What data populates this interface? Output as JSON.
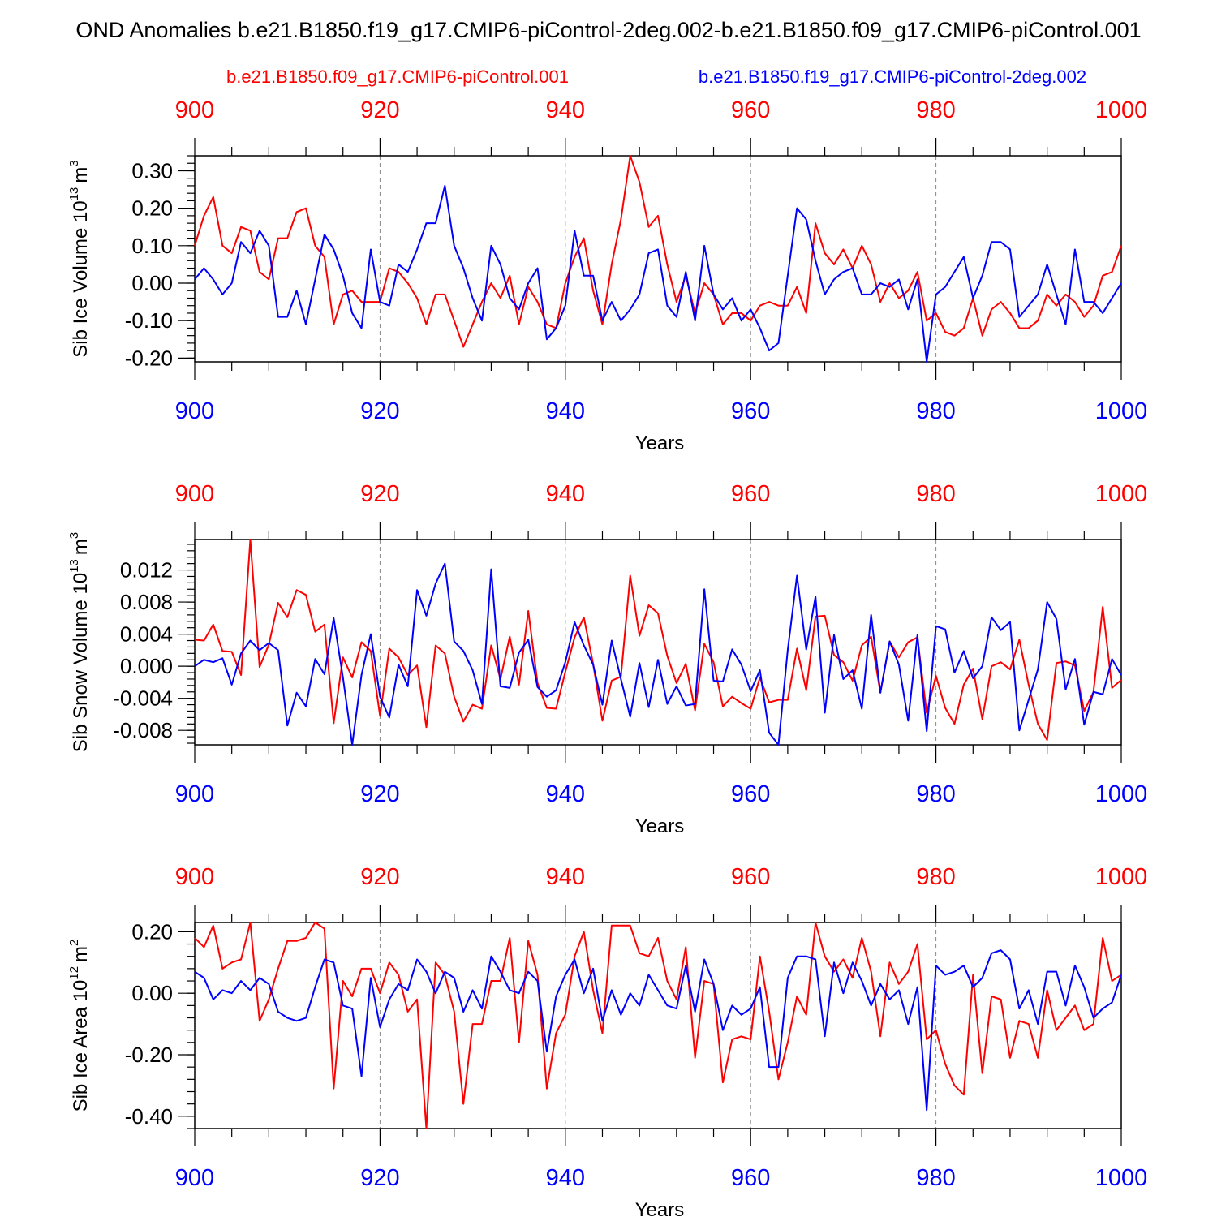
{
  "title": "OND Anomalies b.e21.B1850.f19_g17.CMIP6-piControl-2deg.002-b.e21.B1850.f09_g17.CMIP6-piControl.001",
  "legend": {
    "red_label": "b.e21.B1850.f09_g17.CMIP6-piControl.001",
    "blue_label": "b.e21.B1850.f19_g17.CMIP6-piControl-2deg.002"
  },
  "colors": {
    "red": "#ff0000",
    "blue": "#0000ff",
    "axis": "#000000",
    "grid": "#888888"
  },
  "chart_data": [
    {
      "type": "line",
      "ylabel": "Sib Ice Volume 10^13 m^3",
      "ylabel_main": "Sib Ice Volume 10",
      "ylabel_exp": "13",
      "ylabel_unit": "m",
      "ylabel_unit_exp": "3",
      "xlabel": "Years",
      "xlim": [
        900,
        1000
      ],
      "ylim": [
        -0.21,
        0.34
      ],
      "yticks": [
        -0.2,
        -0.1,
        0.0,
        0.1,
        0.2,
        0.3
      ],
      "yticklabels": [
        "-0.20",
        "-0.10",
        "0.00",
        "0.10",
        "0.20",
        "0.30"
      ],
      "yminor_step": 0.02,
      "top_xticklabels": [
        "900",
        "920",
        "940",
        "960",
        "980",
        "1000"
      ],
      "bottom_xticklabels": [
        "900",
        "920",
        "940",
        "960",
        "980",
        "1000"
      ],
      "series": [
        {
          "name": "b.e21.B1850.f09_g17.CMIP6-piControl.001",
          "color": "red",
          "x_start": 900,
          "values": [
            0.1,
            0.18,
            0.23,
            0.1,
            0.08,
            0.15,
            0.14,
            0.03,
            0.01,
            0.12,
            0.12,
            0.19,
            0.2,
            0.1,
            0.07,
            -0.11,
            -0.03,
            -0.02,
            -0.05,
            -0.05,
            -0.05,
            0.04,
            0.03,
            0.0,
            -0.04,
            -0.11,
            -0.03,
            -0.03,
            -0.1,
            -0.17,
            -0.11,
            -0.05,
            0.0,
            -0.04,
            0.02,
            -0.11,
            -0.01,
            -0.05,
            -0.11,
            -0.12,
            0.0,
            0.07,
            0.12,
            -0.02,
            -0.11,
            0.05,
            0.17,
            0.34,
            0.27,
            0.15,
            0.18,
            0.05,
            -0.05,
            0.02,
            -0.08,
            0.0,
            -0.03,
            -0.11,
            -0.08,
            -0.08,
            -0.1,
            -0.06,
            -0.05,
            -0.06,
            -0.06,
            -0.01,
            -0.08,
            0.16,
            0.08,
            0.05,
            0.09,
            0.04,
            0.1,
            0.05,
            -0.05,
            0.0,
            -0.04,
            -0.02,
            0.03,
            -0.1,
            -0.08,
            -0.13,
            -0.14,
            -0.12,
            -0.04,
            -0.14,
            -0.07,
            -0.05,
            -0.08,
            -0.12,
            -0.12,
            -0.1,
            -0.03,
            -0.06,
            -0.03,
            -0.05,
            -0.09,
            -0.06,
            0.02,
            0.03,
            0.1
          ]
        },
        {
          "name": "b.e21.B1850.f19_g17.CMIP6-piControl-2deg.002",
          "color": "blue",
          "x_start": 900,
          "values": [
            0.01,
            0.04,
            0.01,
            -0.03,
            0.0,
            0.11,
            0.08,
            0.14,
            0.1,
            -0.09,
            -0.09,
            -0.02,
            -0.11,
            0.01,
            0.13,
            0.09,
            0.02,
            -0.08,
            -0.12,
            0.09,
            -0.05,
            -0.06,
            0.05,
            0.03,
            0.09,
            0.16,
            0.16,
            0.26,
            0.1,
            0.04,
            -0.04,
            -0.1,
            0.1,
            0.05,
            -0.04,
            -0.07,
            0.0,
            0.04,
            -0.15,
            -0.12,
            -0.06,
            0.14,
            0.02,
            0.02,
            -0.1,
            -0.05,
            -0.1,
            -0.07,
            -0.03,
            0.08,
            0.09,
            -0.06,
            -0.09,
            0.03,
            -0.1,
            0.1,
            -0.03,
            -0.07,
            -0.04,
            -0.1,
            -0.07,
            -0.12,
            -0.18,
            -0.16,
            0.02,
            0.2,
            0.17,
            0.06,
            -0.03,
            0.01,
            0.03,
            0.04,
            -0.03,
            -0.03,
            0.0,
            -0.01,
            0.01,
            -0.07,
            0.01,
            -0.21,
            -0.03,
            -0.01,
            0.03,
            0.07,
            -0.04,
            0.02,
            0.11,
            0.11,
            0.09,
            -0.09,
            -0.06,
            -0.03,
            0.05,
            -0.03,
            -0.11,
            0.09,
            -0.05,
            -0.05,
            -0.08,
            -0.04,
            0.0
          ]
        }
      ]
    },
    {
      "type": "line",
      "ylabel": "Sib Snow Volume 10^13 m^3",
      "ylabel_main": "Sib Snow Volume 10",
      "ylabel_exp": "13",
      "ylabel_unit": "m",
      "ylabel_unit_exp": "3",
      "xlabel": "Years",
      "xlim": [
        900,
        1000
      ],
      "ylim": [
        -0.0098,
        0.0158
      ],
      "yticks": [
        -0.008,
        -0.004,
        0.0,
        0.004,
        0.008,
        0.012
      ],
      "yticklabels": [
        "-0.008",
        "-0.004",
        "0.000",
        "0.004",
        "0.008",
        "0.012"
      ],
      "yminor_step": 0.0008,
      "top_xticklabels": [
        "900",
        "920",
        "940",
        "960",
        "980",
        "1000"
      ],
      "bottom_xticklabels": [
        "900",
        "920",
        "940",
        "960",
        "980",
        "1000"
      ],
      "series": [
        {
          "name": "b.e21.B1850.f09_g17.CMIP6-piControl.001",
          "color": "red",
          "x_start": 900,
          "values": [
            0.0033,
            0.0032,
            0.0052,
            0.0019,
            0.0018,
            -0.0011,
            0.0158,
            -0.0001,
            0.0027,
            0.0079,
            0.0061,
            0.0095,
            0.0089,
            0.0043,
            0.0052,
            -0.0071,
            0.0011,
            -0.0014,
            0.003,
            0.0019,
            -0.0062,
            0.0022,
            0.0011,
            -0.0011,
            0.0001,
            -0.0076,
            0.0026,
            0.0016,
            -0.0038,
            -0.0069,
            -0.0048,
            -0.0053,
            0.0026,
            -0.0016,
            0.0037,
            -0.0023,
            0.0069,
            -0.0021,
            -0.0052,
            -0.0053,
            -0.0007,
            0.0036,
            0.0061,
            0.0003,
            -0.0068,
            -0.0018,
            -0.0013,
            0.0113,
            0.0038,
            0.0076,
            0.0066,
            0.0013,
            -0.0021,
            0.0003,
            -0.0055,
            0.0028,
            0.0005,
            -0.005,
            -0.0038,
            -0.0046,
            -0.0053,
            -0.0014,
            -0.0045,
            -0.0042,
            -0.0042,
            0.0022,
            -0.003,
            0.0062,
            0.0063,
            0.0014,
            0.0005,
            -0.0018,
            0.0026,
            0.0037,
            -0.0033,
            0.0031,
            0.0011,
            0.003,
            0.0036,
            -0.0058,
            -0.0012,
            -0.0052,
            -0.0072,
            -0.0023,
            -0.0003,
            -0.0066,
            0.0,
            0.0005,
            -0.0004,
            0.0033,
            -0.0023,
            -0.0072,
            -0.0092,
            0.0004,
            0.0006,
            0.0001,
            -0.0056,
            -0.0032,
            0.0074,
            -0.0027,
            -0.0017
          ]
        },
        {
          "name": "b.e21.B1850.f19_g17.CMIP6-piControl-2deg.002",
          "color": "blue",
          "x_start": 900,
          "values": [
            0.0,
            0.0008,
            0.0005,
            0.001,
            -0.0023,
            0.0016,
            0.0032,
            0.002,
            0.0029,
            0.002,
            -0.0074,
            -0.0033,
            -0.005,
            0.0009,
            -0.001,
            0.006,
            -0.0014,
            -0.0098,
            -0.0011,
            0.004,
            -0.0038,
            -0.0064,
            0.0002,
            -0.0025,
            0.0095,
            0.0063,
            0.0103,
            0.0128,
            0.0031,
            0.0019,
            -0.0005,
            -0.0047,
            0.0121,
            -0.0025,
            -0.0027,
            0.0017,
            0.0033,
            -0.0026,
            -0.0038,
            -0.003,
            0.0005,
            0.0055,
            0.0026,
            0.0002,
            -0.0048,
            0.0032,
            -0.0016,
            -0.0063,
            0.0004,
            -0.0051,
            0.0008,
            -0.0047,
            -0.0025,
            -0.0049,
            -0.0047,
            0.0096,
            -0.0018,
            -0.0019,
            0.0021,
            0.0002,
            -0.0031,
            -0.0005,
            -0.0083,
            -0.0098,
            0.002,
            0.0113,
            0.0021,
            0.0087,
            -0.0058,
            0.0039,
            -0.0016,
            -0.0005,
            -0.0053,
            0.0064,
            -0.0033,
            0.0031,
            0.0002,
            -0.0068,
            0.0039,
            -0.0081,
            0.005,
            0.0046,
            -0.0008,
            0.0019,
            -0.0015,
            0.0,
            0.0061,
            0.0045,
            0.0055,
            -0.008,
            -0.0042,
            -0.0004,
            0.008,
            0.0059,
            -0.0029,
            0.0009,
            -0.0073,
            -0.0032,
            -0.0035,
            0.0009,
            -0.0011
          ]
        }
      ]
    },
    {
      "type": "line",
      "ylabel": "Sib Ice Area 10^12 m^2",
      "ylabel_main": "Sib Ice Area 10",
      "ylabel_exp": "12",
      "ylabel_unit": "m",
      "ylabel_unit_exp": "2",
      "xlabel": "Years",
      "xlim": [
        900,
        1000
      ],
      "ylim": [
        -0.44,
        0.23
      ],
      "yticks": [
        -0.4,
        -0.2,
        0.0,
        0.2
      ],
      "yticklabels": [
        "-0.40",
        "-0.20",
        "0.00",
        "0.20"
      ],
      "yminor_step": 0.04,
      "top_xticklabels": [
        "900",
        "920",
        "940",
        "960",
        "980",
        "1000"
      ],
      "bottom_xticklabels": [
        "900",
        "920",
        "940",
        "960",
        "980",
        "1000"
      ],
      "series": [
        {
          "name": "b.e21.B1850.f09_g17.CMIP6-piControl.001",
          "color": "red",
          "x_start": 900,
          "values": [
            0.18,
            0.15,
            0.22,
            0.08,
            0.1,
            0.11,
            0.23,
            -0.09,
            -0.02,
            0.08,
            0.17,
            0.17,
            0.18,
            0.23,
            0.21,
            -0.31,
            0.04,
            -0.01,
            0.08,
            0.08,
            0.0,
            0.1,
            0.06,
            -0.06,
            -0.02,
            -0.44,
            0.1,
            0.06,
            -0.06,
            -0.36,
            -0.1,
            -0.1,
            0.04,
            0.04,
            0.18,
            -0.16,
            0.17,
            0.06,
            -0.31,
            -0.13,
            -0.07,
            0.12,
            0.2,
            0.01,
            -0.13,
            0.22,
            0.22,
            0.22,
            0.13,
            0.12,
            0.18,
            0.04,
            -0.02,
            0.15,
            -0.21,
            0.04,
            0.03,
            -0.29,
            -0.15,
            -0.14,
            -0.15,
            0.12,
            -0.06,
            -0.28,
            -0.16,
            -0.01,
            -0.07,
            0.23,
            0.12,
            0.07,
            0.11,
            0.05,
            0.18,
            0.07,
            -0.14,
            0.1,
            0.03,
            0.07,
            0.16,
            -0.15,
            -0.12,
            -0.23,
            -0.3,
            -0.33,
            0.06,
            -0.26,
            -0.01,
            -0.02,
            -0.21,
            -0.09,
            -0.1,
            -0.21,
            0.01,
            -0.12,
            -0.08,
            -0.04,
            -0.12,
            -0.1,
            0.18,
            0.04,
            0.06
          ]
        },
        {
          "name": "b.e21.B1850.f19_g17.CMIP6-piControl-2deg.002",
          "color": "blue",
          "x_start": 900,
          "values": [
            0.07,
            0.05,
            -0.02,
            0.01,
            0.0,
            0.04,
            0.01,
            0.05,
            0.03,
            -0.06,
            -0.08,
            -0.09,
            -0.08,
            0.02,
            0.11,
            0.1,
            -0.04,
            -0.05,
            -0.27,
            0.05,
            -0.11,
            -0.02,
            0.03,
            0.01,
            0.11,
            0.07,
            0.0,
            0.07,
            0.05,
            -0.06,
            0.01,
            -0.05,
            0.12,
            0.07,
            0.01,
            0.0,
            0.07,
            0.04,
            -0.19,
            -0.01,
            0.06,
            0.11,
            0.0,
            0.08,
            -0.09,
            0.01,
            -0.07,
            0.0,
            -0.04,
            0.06,
            0.01,
            -0.04,
            -0.05,
            0.09,
            -0.06,
            0.11,
            0.03,
            -0.12,
            -0.04,
            -0.07,
            -0.05,
            0.02,
            -0.24,
            -0.24,
            0.05,
            0.12,
            0.12,
            0.11,
            -0.14,
            0.1,
            0.0,
            0.1,
            0.04,
            -0.04,
            0.03,
            -0.02,
            0.01,
            -0.1,
            0.02,
            -0.38,
            0.09,
            0.06,
            0.07,
            0.09,
            0.02,
            0.05,
            0.13,
            0.14,
            0.11,
            -0.05,
            0.01,
            -0.1,
            0.07,
            0.07,
            -0.04,
            0.09,
            0.02,
            -0.08,
            -0.05,
            -0.03,
            0.06
          ]
        }
      ]
    }
  ]
}
